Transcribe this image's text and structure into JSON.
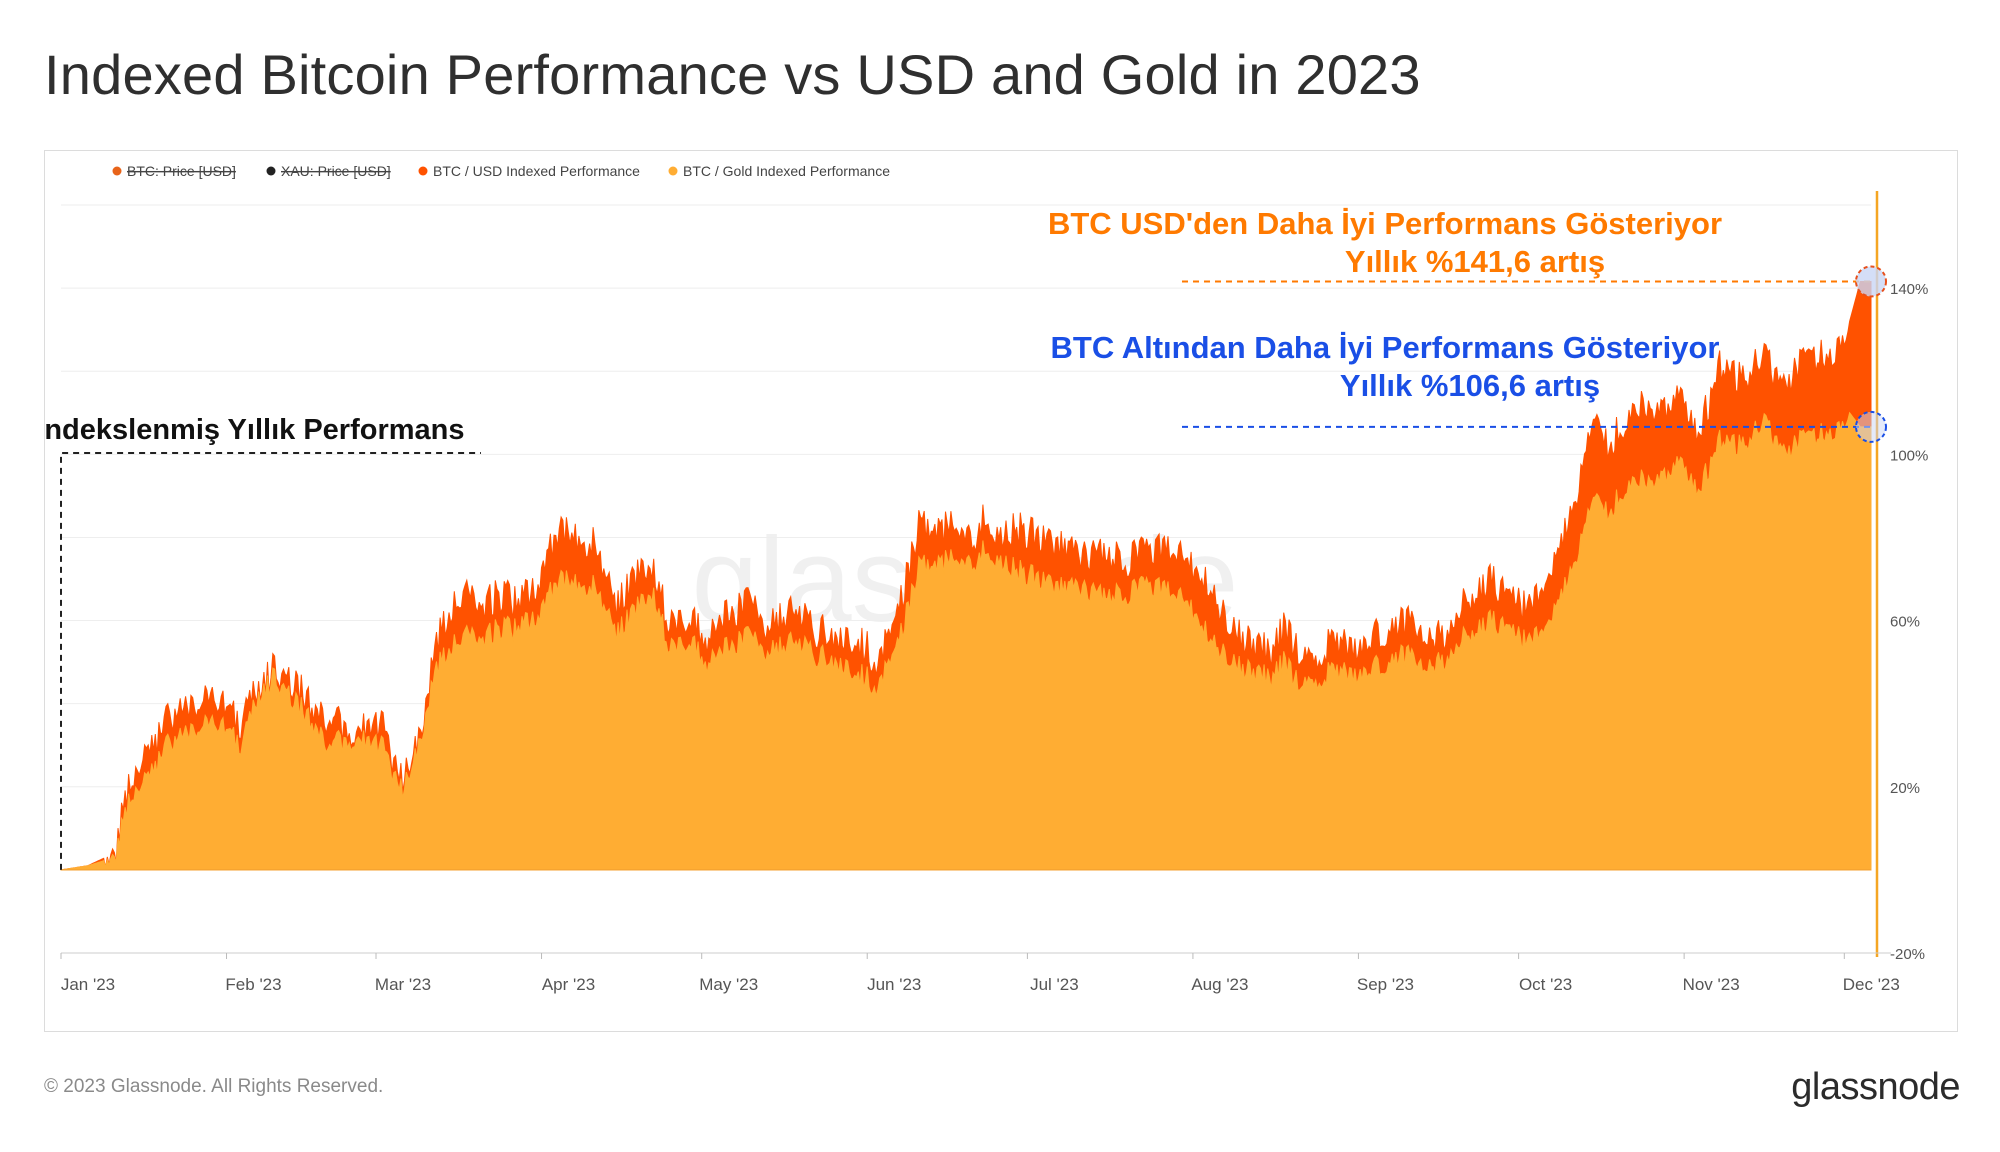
{
  "title": "Indexed Bitcoin Performance vs USD and Gold in 2023",
  "footer": {
    "copyright": "© 2023 Glassnode. All Rights Reserved.",
    "logo": "glassnode",
    "watermark": "glassnode"
  },
  "colors": {
    "usd": "#ff5200",
    "gold": "#ffad33",
    "usd_annotation": "#ff7a00",
    "gold_annotation": "#1a4fe6",
    "grid": "#eeeeee",
    "axis_text": "#555555"
  },
  "legend": [
    {
      "label": "BTC: Price [USD]",
      "color": "#e8641a",
      "disabled": true
    },
    {
      "label": "XAU: Price [USD]",
      "color": "#222222",
      "disabled": true
    },
    {
      "label": "BTC / USD Indexed Performance",
      "color": "#ff5200",
      "disabled": false
    },
    {
      "label": "BTC / Gold Indexed Performance",
      "color": "#ffad33",
      "disabled": false
    }
  ],
  "annotations": {
    "usd_line1": "BTC USD'den Daha İyi Performans Gösteriyor",
    "usd_line2": "Yıllık %141,6 artış",
    "gold_line1": "BTC Altından Daha İyi Performans Gösteriyor",
    "gold_line2": "Yıllık %106,6 artış",
    "indexed": "Endekslenmiş Yıllık Performans"
  },
  "chart_data": {
    "type": "area",
    "title": "Indexed Bitcoin Performance vs USD and Gold in 2023",
    "xlabel": "",
    "ylabel": "",
    "x_ticks": [
      "Jan '23",
      "Feb '23",
      "Mar '23",
      "Apr '23",
      "May '23",
      "Jun '23",
      "Jul '23",
      "Aug '23",
      "Sep '23",
      "Oct '23",
      "Nov '23",
      "Dec '23"
    ],
    "x_tick_days": [
      0,
      31,
      59,
      90,
      120,
      151,
      181,
      212,
      243,
      273,
      304,
      334
    ],
    "y_ticks": [
      -20,
      20,
      60,
      100,
      140
    ],
    "y_tick_labels": [
      "-20%",
      "20%",
      "60%",
      "100%",
      "140%"
    ],
    "ylim": [
      -20,
      160
    ],
    "xlim_days": [
      0,
      339
    ],
    "y_unit": "%",
    "series": [
      {
        "name": "BTC / USD Indexed Performance",
        "x_days": [
          0,
          5,
          10,
          13,
          16,
          20,
          25,
          30,
          34,
          37,
          40,
          44,
          47,
          50,
          55,
          60,
          64,
          68,
          70,
          72,
          75,
          79,
          82,
          86,
          90,
          93,
          100,
          104,
          107,
          111,
          114,
          118,
          121,
          125,
          129,
          133,
          137,
          141,
          145,
          149,
          153,
          157,
          161,
          165,
          169,
          171,
          173,
          176,
          179,
          183,
          187,
          191,
          195,
          199,
          203,
          207,
          211,
          215,
          219,
          223,
          227,
          229,
          231,
          235,
          239,
          242,
          245,
          248,
          251,
          255,
          259,
          263,
          267,
          271,
          275,
          279,
          283,
          287,
          290,
          293,
          297,
          300,
          303,
          307,
          311,
          315,
          319,
          323,
          327,
          331,
          335,
          337,
          339
        ],
        "values": [
          0,
          1,
          4,
          22,
          28,
          36,
          40,
          42,
          35,
          44,
          48,
          44,
          40,
          36,
          34,
          35,
          20,
          36,
          54,
          60,
          66,
          64,
          66,
          64,
          70,
          82,
          78,
          62,
          70,
          72,
          60,
          62,
          56,
          62,
          64,
          58,
          64,
          58,
          56,
          56,
          50,
          64,
          84,
          82,
          84,
          80,
          86,
          80,
          82,
          80,
          78,
          76,
          76,
          74,
          76,
          78,
          74,
          68,
          58,
          55,
          52,
          58,
          54,
          52,
          55,
          52,
          55,
          58,
          60,
          58,
          56,
          64,
          70,
          66,
          62,
          74,
          86,
          106,
          102,
          108,
          112,
          110,
          114,
          106,
          122,
          118,
          124,
          116,
          126,
          122,
          132,
          141.6,
          141.6
        ]
      },
      {
        "name": "BTC / Gold Indexed Performance",
        "x_days": [
          0,
          5,
          10,
          13,
          16,
          20,
          25,
          30,
          34,
          37,
          40,
          44,
          47,
          50,
          55,
          60,
          64,
          68,
          70,
          72,
          75,
          79,
          82,
          86,
          90,
          93,
          100,
          104,
          107,
          111,
          114,
          118,
          121,
          125,
          129,
          133,
          137,
          141,
          145,
          149,
          153,
          157,
          161,
          165,
          169,
          171,
          173,
          176,
          179,
          183,
          187,
          191,
          195,
          199,
          203,
          207,
          211,
          215,
          219,
          223,
          227,
          229,
          231,
          235,
          239,
          242,
          245,
          248,
          251,
          255,
          259,
          263,
          267,
          271,
          275,
          279,
          283,
          287,
          290,
          293,
          297,
          300,
          303,
          307,
          311,
          315,
          319,
          323,
          327,
          331,
          335,
          337,
          339
        ],
        "values": [
          0,
          1,
          3,
          18,
          22,
          30,
          34,
          36,
          30,
          42,
          46,
          40,
          36,
          30,
          32,
          30,
          18,
          34,
          48,
          52,
          56,
          56,
          58,
          58,
          62,
          70,
          68,
          56,
          62,
          66,
          54,
          56,
          50,
          54,
          56,
          52,
          56,
          52,
          50,
          48,
          44,
          56,
          74,
          74,
          76,
          74,
          78,
          74,
          72,
          70,
          68,
          68,
          66,
          66,
          68,
          68,
          64,
          56,
          50,
          48,
          46,
          50,
          46,
          46,
          48,
          46,
          48,
          50,
          52,
          50,
          50,
          56,
          60,
          58,
          54,
          62,
          72,
          88,
          86,
          92,
          94,
          94,
          98,
          92,
          104,
          102,
          108,
          100,
          106,
          104,
          110,
          106.6,
          106.6
        ]
      }
    ]
  }
}
